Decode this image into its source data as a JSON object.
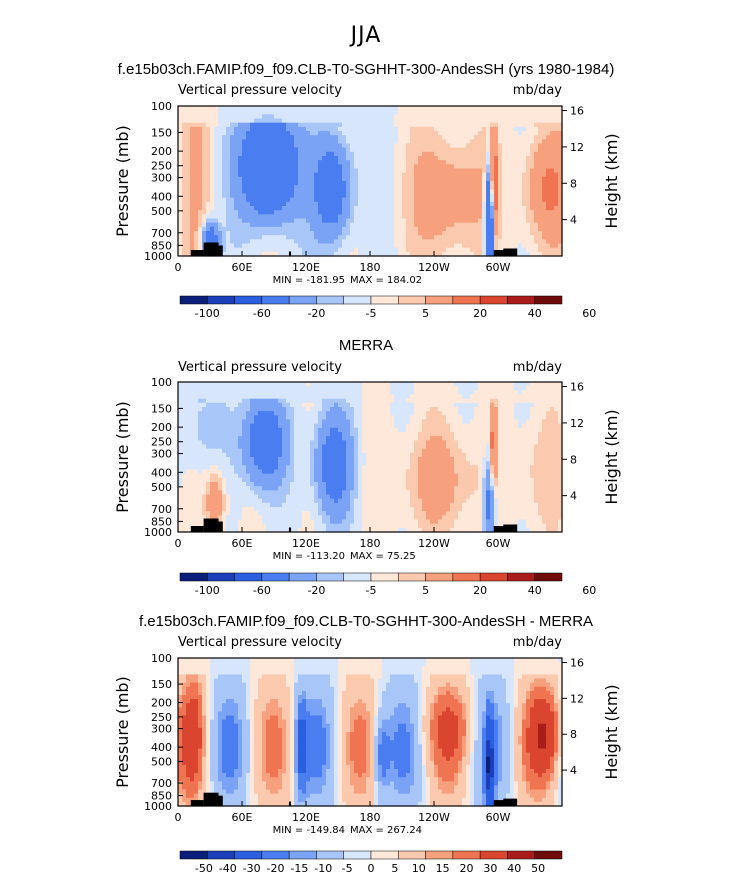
{
  "page": {
    "title": "JJA"
  },
  "colors": {
    "scale": [
      "#0b1f7a",
      "#1a3fb8",
      "#2a5fe0",
      "#4a7ef0",
      "#7aa2f5",
      "#a9c6f8",
      "#d8e6fb",
      "#fde8da",
      "#fbc9ad",
      "#f6a07d",
      "#ee7452",
      "#d9452e",
      "#a81c1a",
      "#6e0b0b"
    ]
  },
  "chart_data": [
    {
      "type": "heatmap",
      "title": "f.e15b03ch.FAMIP.f09_f09.CLB-T0-SGHHT-300-AndesSH (yrs 1980-1984)",
      "subtitle_left": "Vertical pressure velocity",
      "subtitle_right": "mb/day",
      "ylabel": "Pressure (mb)",
      "ylabel_right": "Height (km)",
      "x_ticks": [
        "0",
        "60E",
        "120E",
        "180",
        "120W",
        "60W"
      ],
      "x_tick_values": [
        0,
        60,
        120,
        180,
        240,
        300
      ],
      "xlim": [
        0,
        360
      ],
      "y_ticks": [
        "100",
        "150",
        "200",
        "250",
        "300",
        "400",
        "500",
        "700",
        "850",
        "1000"
      ],
      "y_tick_values": [
        100,
        150,
        200,
        250,
        300,
        400,
        500,
        700,
        850,
        1000
      ],
      "ylim": [
        1000,
        100
      ],
      "y_scale": "log",
      "y_right_ticks": [
        "4",
        "8",
        "12",
        "16"
      ],
      "y_right_values": [
        4,
        8,
        12,
        16
      ],
      "min_text": "MIN = -181.95",
      "max_text": "MAX = 184.02",
      "colorbar_levels": [
        -100,
        -80,
        -60,
        -40,
        -20,
        -10,
        -5,
        0,
        5,
        10,
        20,
        30,
        40,
        60,
        80
      ],
      "colorbar_labels": [
        "-100",
        "-60",
        "-20",
        "-5",
        "5",
        "20",
        "40",
        "60"
      ],
      "variant": 0
    },
    {
      "type": "heatmap",
      "title": "MERRA",
      "subtitle_left": "Vertical pressure velocity",
      "subtitle_right": "mb/day",
      "ylabel": "Pressure (mb)",
      "ylabel_right": "Height (km)",
      "x_ticks": [
        "0",
        "60E",
        "120E",
        "180",
        "120W",
        "60W"
      ],
      "x_tick_values": [
        0,
        60,
        120,
        180,
        240,
        300
      ],
      "xlim": [
        0,
        360
      ],
      "y_ticks": [
        "100",
        "150",
        "200",
        "250",
        "300",
        "400",
        "500",
        "700",
        "850",
        "1000"
      ],
      "y_tick_values": [
        100,
        150,
        200,
        250,
        300,
        400,
        500,
        700,
        850,
        1000
      ],
      "ylim": [
        1000,
        100
      ],
      "y_scale": "log",
      "y_right_ticks": [
        "4",
        "8",
        "12",
        "16"
      ],
      "y_right_values": [
        4,
        8,
        12,
        16
      ],
      "min_text": "MIN = -113.20",
      "max_text": "MAX =  75.25",
      "colorbar_levels": [
        -100,
        -80,
        -60,
        -40,
        -20,
        -10,
        -5,
        0,
        5,
        10,
        20,
        30,
        40,
        60,
        80
      ],
      "colorbar_labels": [
        "-100",
        "-60",
        "-20",
        "-5",
        "5",
        "20",
        "40",
        "60"
      ],
      "variant": 1
    },
    {
      "type": "heatmap",
      "title": "f.e15b03ch.FAMIP.f09_f09.CLB-T0-SGHHT-300-AndesSH - MERRA",
      "subtitle_left": "Vertical pressure velocity",
      "subtitle_right": "mb/day",
      "ylabel": "Pressure (mb)",
      "ylabel_right": "Height (km)",
      "x_ticks": [
        "0",
        "60E",
        "120E",
        "180",
        "120W",
        "60W"
      ],
      "x_tick_values": [
        0,
        60,
        120,
        180,
        240,
        300
      ],
      "xlim": [
        0,
        360
      ],
      "y_ticks": [
        "100",
        "150",
        "200",
        "250",
        "300",
        "400",
        "500",
        "700",
        "850",
        "1000"
      ],
      "y_tick_values": [
        100,
        150,
        200,
        250,
        300,
        400,
        500,
        700,
        850,
        1000
      ],
      "ylim": [
        1000,
        100
      ],
      "y_scale": "log",
      "y_right_ticks": [
        "4",
        "8",
        "12",
        "16"
      ],
      "y_right_values": [
        4,
        8,
        12,
        16
      ],
      "min_text": "MIN = -149.84",
      "max_text": "MAX = 267.24",
      "colorbar_levels": [
        -60,
        -50,
        -40,
        -30,
        -20,
        -15,
        -10,
        -5,
        0,
        5,
        10,
        15,
        20,
        30,
        40,
        50,
        60
      ],
      "colorbar_labels": [
        "-50",
        "-40",
        "-30",
        "-20",
        "-15",
        "-10",
        "-5",
        "0",
        "5",
        "10",
        "15",
        "20",
        "30",
        "40",
        "50"
      ],
      "variant": 2
    }
  ]
}
